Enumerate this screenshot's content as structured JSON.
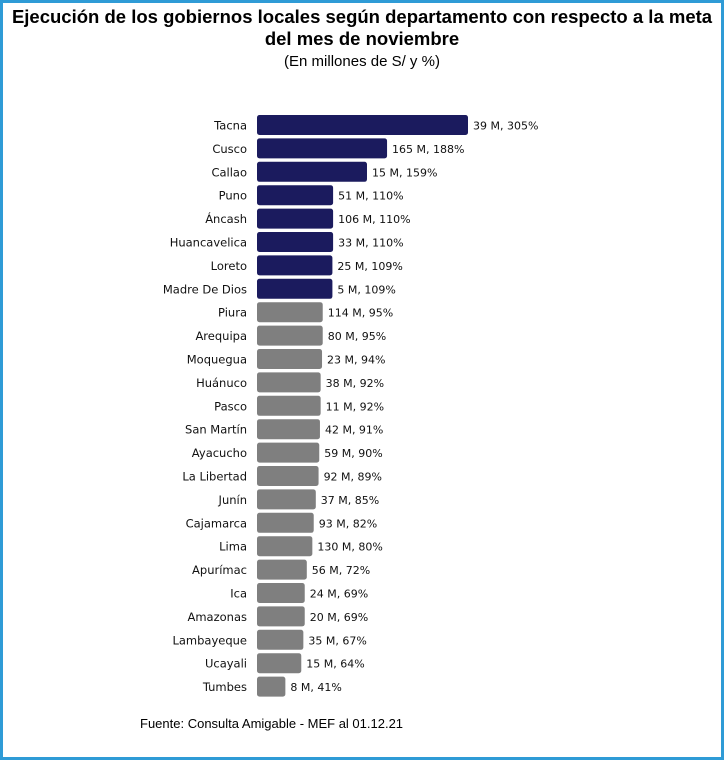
{
  "colors": {
    "border": "#2f9bd6",
    "above_goal": "#1b1b5e",
    "below_goal": "#7f7f7f"
  },
  "chart_data": {
    "type": "bar",
    "orientation": "horizontal",
    "title": "Ejecución de los gobiernos locales según departamento con respecto a la meta del mes de noviembre",
    "title_lines": [
      "Ejecución de los gobiernos locales según departamento con respecto a la meta",
      "del mes de noviembre"
    ],
    "subtitle": "(En millones de S/ y %)",
    "categories": [
      "Tacna",
      "Cusco",
      "Callao",
      "Puno",
      "Áncash",
      "Huancavelica",
      "Loreto",
      "Madre De Dios",
      "Piura",
      "Arequipa",
      "Moquegua",
      "Huánuco",
      "Pasco",
      "San Martín",
      "Ayacucho",
      "La Libertad",
      "Junín",
      "Cajamarca",
      "Lima",
      "Apurímac",
      "Ica",
      "Amazonas",
      "Lambayeque",
      "Ucayali",
      "Tumbes"
    ],
    "values": [
      305,
      188,
      159,
      110,
      110,
      110,
      109,
      109,
      95,
      95,
      94,
      92,
      92,
      91,
      90,
      89,
      85,
      82,
      80,
      72,
      69,
      69,
      67,
      64,
      41
    ],
    "amounts": [
      39,
      165,
      15,
      51,
      106,
      33,
      25,
      5,
      114,
      80,
      23,
      38,
      11,
      42,
      59,
      92,
      37,
      93,
      130,
      56,
      24,
      20,
      35,
      15,
      8
    ],
    "data_labels": [
      "39 M, 305%",
      "165 M, 188%",
      "15 M, 159%",
      "51 M, 110%",
      "106 M, 110%",
      "33 M, 110%",
      "25 M, 109%",
      "5 M, 109%",
      "114 M, 95%",
      "80 M, 95%",
      "23 M, 94%",
      "38 M, 92%",
      "11 M, 92%",
      "42 M, 91%",
      "59 M, 90%",
      "92 M, 89%",
      "37 M, 85%",
      "93 M, 82%",
      "130 M, 80%",
      "56 M, 72%",
      "24 M, 69%",
      "20 M, 69%",
      "35 M, 67%",
      "15 M, 64%",
      "8 M, 41%"
    ],
    "xlim": [
      0,
      305
    ],
    "grid": false,
    "legend": false
  },
  "source": "Fuente: Consulta Amigable - MEF al 01.12.21"
}
